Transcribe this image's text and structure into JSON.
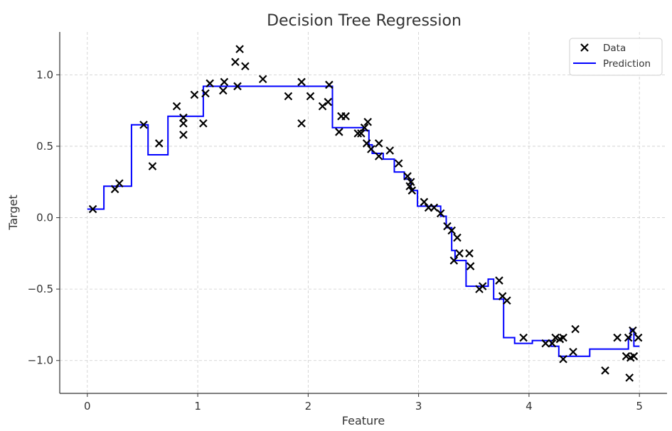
{
  "chart_data": {
    "type": "scatter",
    "title": "Decision Tree Regression",
    "xlabel": "Feature",
    "ylabel": "Target",
    "xlim": [
      -0.25,
      5.25
    ],
    "ylim": [
      -1.23,
      1.3
    ],
    "xticks": [
      0,
      1,
      2,
      3,
      4,
      5
    ],
    "yticks": [
      -1.0,
      -0.5,
      0.0,
      0.5,
      1.0
    ],
    "xtick_labels": [
      "0",
      "1",
      "2",
      "3",
      "4",
      "5"
    ],
    "ytick_labels": [
      "−1.0",
      "−0.5",
      "0.0",
      "0.5",
      "1.0"
    ],
    "grid": true,
    "legend": {
      "position": "top-right",
      "entries": [
        "Data",
        "Prediction"
      ]
    },
    "colors": {
      "data": "#000000",
      "prediction": "#0000ff",
      "grid": "#cccccc",
      "axis": "#333333"
    },
    "series": [
      {
        "name": "Data",
        "type": "scatter",
        "marker": "x",
        "x": [
          0.05,
          0.25,
          0.29,
          0.51,
          0.59,
          0.65,
          0.81,
          0.87,
          0.87,
          0.87,
          0.97,
          1.05,
          1.07,
          1.11,
          1.23,
          1.24,
          1.34,
          1.36,
          1.38,
          1.43,
          1.59,
          1.82,
          1.94,
          1.94,
          2.02,
          2.13,
          2.18,
          2.19,
          2.28,
          2.3,
          2.34,
          2.45,
          2.48,
          2.51,
          2.53,
          2.54,
          2.57,
          2.64,
          2.64,
          2.74,
          2.82,
          2.9,
          2.92,
          2.93,
          2.94,
          3.05,
          3.09,
          3.14,
          3.2,
          3.26,
          3.3,
          3.32,
          3.35,
          3.37,
          3.46,
          3.47,
          3.55,
          3.58,
          3.73,
          3.76,
          3.8,
          3.95,
          4.15,
          4.21,
          4.24,
          4.28,
          4.31,
          4.31,
          4.4,
          4.42,
          4.69,
          4.8,
          4.88,
          4.9,
          4.91,
          4.92,
          4.94,
          4.95,
          4.99
        ],
        "y": [
          0.06,
          0.2,
          0.24,
          0.65,
          0.36,
          0.52,
          0.78,
          0.7,
          0.66,
          0.58,
          0.86,
          0.66,
          0.87,
          0.94,
          0.89,
          0.95,
          1.09,
          0.92,
          1.18,
          1.06,
          0.97,
          0.85,
          0.95,
          0.66,
          0.85,
          0.78,
          0.81,
          0.93,
          0.6,
          0.71,
          0.71,
          0.59,
          0.59,
          0.63,
          0.52,
          0.67,
          0.48,
          0.43,
          0.52,
          0.47,
          0.38,
          0.29,
          0.22,
          0.25,
          0.19,
          0.11,
          0.07,
          0.07,
          0.03,
          -0.06,
          -0.09,
          -0.3,
          -0.14,
          -0.25,
          -0.25,
          -0.34,
          -0.5,
          -0.48,
          -0.44,
          -0.55,
          -0.58,
          -0.84,
          -0.88,
          -0.88,
          -0.84,
          -0.85,
          -0.99,
          -0.84,
          -0.94,
          -0.78,
          -1.07,
          -0.84,
          -0.97,
          -0.84,
          -1.12,
          -0.98,
          -0.79,
          -0.97,
          -0.84
        ]
      },
      {
        "name": "Prediction",
        "type": "line",
        "x": [
          0.0,
          0.15,
          0.15,
          0.4,
          0.4,
          0.55,
          0.55,
          0.73,
          0.73,
          1.05,
          1.05,
          2.22,
          2.22,
          2.5,
          2.5,
          2.55,
          2.55,
          2.58,
          2.58,
          2.68,
          2.68,
          2.78,
          2.78,
          2.87,
          2.87,
          2.93,
          2.93,
          2.99,
          2.99,
          3.2,
          3.2,
          3.25,
          3.25,
          3.3,
          3.3,
          3.33,
          3.33,
          3.43,
          3.43,
          3.53,
          3.53,
          3.63,
          3.63,
          3.68,
          3.68,
          3.77,
          3.77,
          3.87,
          3.87,
          4.03,
          4.03,
          4.2,
          4.2,
          4.27,
          4.27,
          4.55,
          4.55,
          4.9,
          4.9,
          4.92,
          4.92,
          4.95,
          4.95,
          5.0
        ],
        "y": [
          0.06,
          0.06,
          0.22,
          0.22,
          0.65,
          0.65,
          0.44,
          0.44,
          0.71,
          0.71,
          0.92,
          0.92,
          0.63,
          0.63,
          0.61,
          0.61,
          0.51,
          0.51,
          0.45,
          0.45,
          0.41,
          0.41,
          0.32,
          0.32,
          0.27,
          0.27,
          0.19,
          0.19,
          0.08,
          0.08,
          0.01,
          0.01,
          -0.07,
          -0.07,
          -0.23,
          -0.23,
          -0.3,
          -0.3,
          -0.48,
          -0.48,
          -0.48,
          -0.48,
          -0.43,
          -0.43,
          -0.57,
          -0.57,
          -0.84,
          -0.84,
          -0.88,
          -0.88,
          -0.86,
          -0.86,
          -0.9,
          -0.9,
          -0.97,
          -0.97,
          -0.92,
          -0.92,
          -0.84,
          -0.84,
          -0.78,
          -0.78,
          -0.9,
          -0.9
        ]
      }
    ]
  }
}
